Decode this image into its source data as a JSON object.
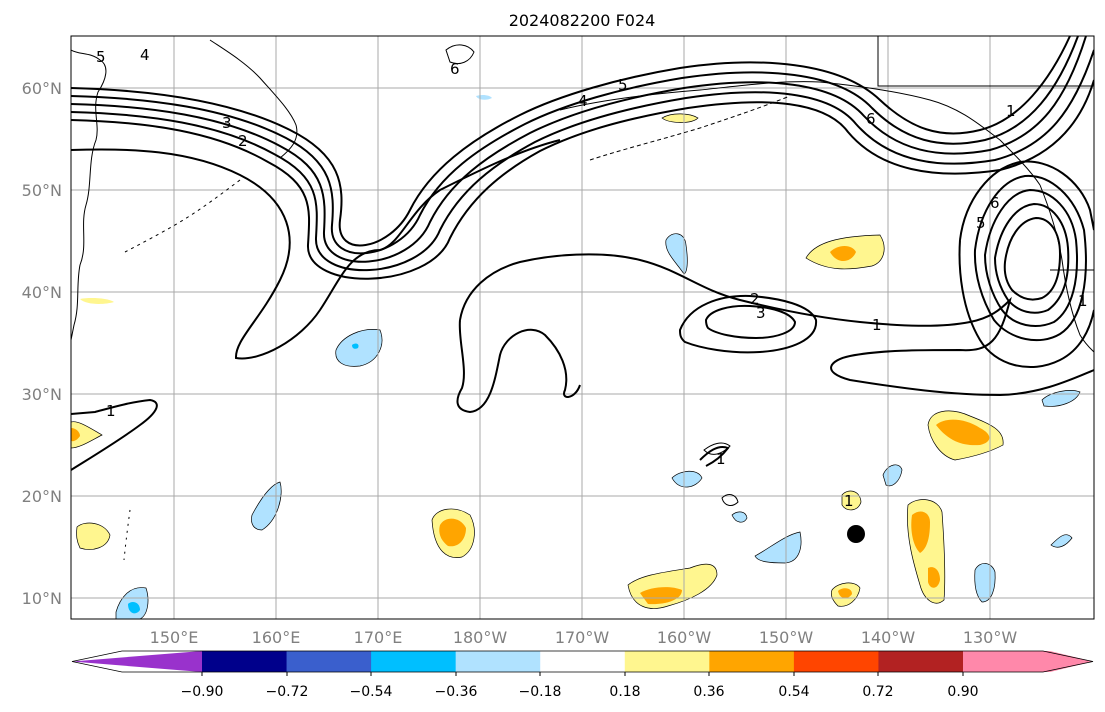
{
  "title": "2024082200 F024",
  "map": {
    "lat_ticks": [
      "60°N",
      "50°N",
      "40°N",
      "30°N",
      "20°N",
      "10°N"
    ],
    "lon_ticks": [
      "150°E",
      "160°E",
      "170°E",
      "180°W",
      "170°W",
      "160°W",
      "150°W",
      "140°W",
      "130°W"
    ],
    "contour_labels": [
      "5",
      "4",
      "3",
      "2",
      "6",
      "4",
      "5",
      "6",
      "1",
      "6",
      "5",
      "2",
      "3",
      "1",
      "1",
      "1",
      "1",
      "1"
    ],
    "marker": "filled-circle"
  },
  "colorbar": {
    "tick_labels": [
      "−0.90",
      "−0.72",
      "−0.54",
      "−0.36",
      "−0.18",
      "0.18",
      "0.36",
      "0.54",
      "0.72",
      "0.90"
    ],
    "colors": [
      "#9932cc",
      "#00008b",
      "#3a5fcd",
      "#00bfff",
      "#b0e2ff",
      "#ffffff",
      "#fff68f",
      "#ffa500",
      "#ff4500",
      "#b22222",
      "#ff88aa"
    ]
  }
}
